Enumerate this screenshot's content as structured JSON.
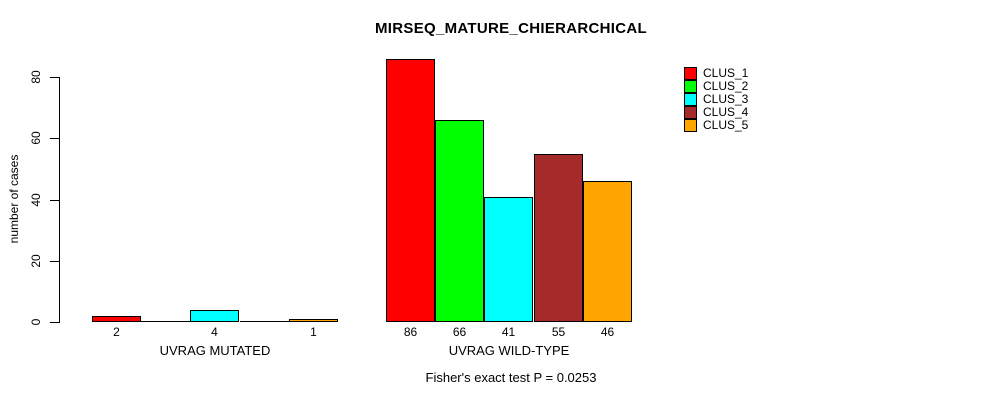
{
  "chart_data": {
    "type": "bar",
    "title": "MIRSEQ_MATURE_CHIERARCHICAL",
    "ylabel": "number of cases",
    "xlabel": "",
    "ylim": [
      0,
      86
    ],
    "yticks": [
      0,
      20,
      40,
      60,
      80
    ],
    "grid": false,
    "legend_position": "top-right",
    "annotation": "Fisher's exact test P = 0.0253",
    "categories": [
      "UVRAG MUTATED",
      "UVRAG WILD-TYPE"
    ],
    "series": [
      {
        "name": "CLUS_1",
        "color": "#FF0000",
        "values": [
          2,
          86
        ]
      },
      {
        "name": "CLUS_2",
        "color": "#00FF00",
        "values": [
          0,
          66
        ]
      },
      {
        "name": "CLUS_3",
        "color": "#00FFFF",
        "values": [
          4,
          41
        ]
      },
      {
        "name": "CLUS_4",
        "color": "#A52A2A",
        "values": [
          0,
          55
        ]
      },
      {
        "name": "CLUS_5",
        "color": "#FFA500",
        "values": [
          1,
          46
        ]
      }
    ],
    "bar_value_labels": [
      [
        "2",
        "",
        "4",
        "",
        "1"
      ],
      [
        "86",
        "66",
        "41",
        "55",
        "46"
      ]
    ],
    "notes_colors": {
      "background": "#FFFFFF",
      "axis": "#000000",
      "text": "#000000"
    }
  }
}
